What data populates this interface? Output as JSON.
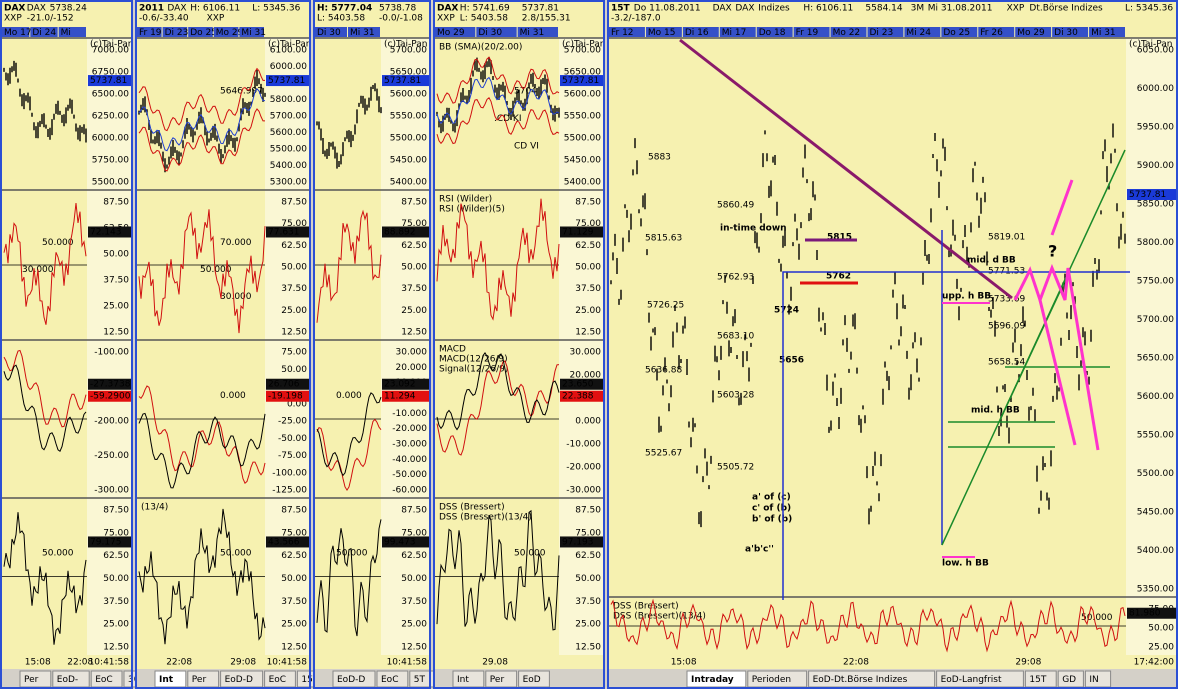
{
  "panels": [
    {
      "header": [
        "DAX",
        "DAX",
        "5738.24",
        "XXP",
        "-21.0/-152"
      ],
      "dates": [
        "Mo 17",
        "Di 24",
        "Mi"
      ],
      "subs": [
        {
          "ticks": [
            "7000.00",
            "6750.00",
            "6500.00",
            "6250.00",
            "6000.00",
            "5750.00",
            "5500.00"
          ],
          "badges": [
            "5737.81"
          ],
          "notes": [
            "(c)Tai-Pan"
          ],
          "legend": []
        },
        {
          "ticks": [
            "87.50",
            "62.50",
            "50.00",
            "37.50",
            "25.00",
            "12.50"
          ],
          "badges": [
            "72.143"
          ],
          "notes": [
            "50.000",
            "30.000"
          ],
          "legend": []
        },
        {
          "ticks": [
            "-100.00",
            "-150.00",
            "-200.00",
            "-250.00",
            "-300.00"
          ],
          "badges": [
            "-27.3738",
            "-59.2900"
          ],
          "notes": [],
          "legend": []
        },
        {
          "ticks": [
            "87.50",
            "75.00",
            "62.50",
            "50.00",
            "37.50",
            "25.00",
            "12.50"
          ],
          "badges": [
            "79.175"
          ],
          "notes": [
            "50.000"
          ],
          "legend": []
        }
      ],
      "axis_dates": [
        "15:08",
        "22:08"
      ],
      "tabs": [
        "Per",
        "EoD-",
        "EoC",
        "30T"
      ],
      "time": "10:41:58"
    },
    {
      "header": [
        "2011",
        "DAX",
        "H: 6106.11",
        "L: 5345.36",
        "-0.6/-33.40",
        "XXP"
      ],
      "dates": [
        "Fr 19",
        "Di 23",
        "Do 25",
        "Mo 29",
        "Mi 31"
      ],
      "subs": [
        {
          "ticks": [
            "6100.00",
            "6000.00",
            "5900.00",
            "5800.00",
            "5700.00",
            "5600.00",
            "5500.00",
            "5400.00",
            "5300.00"
          ],
          "badges": [
            "5737.81"
          ],
          "notes": [
            "5646.997",
            "(c)Tai-Pan"
          ],
          "legend": []
        },
        {
          "ticks": [
            "87.50",
            "75.00",
            "62.50",
            "50.00",
            "37.50",
            "25.00",
            "12.50"
          ],
          "badges": [
            "77.631"
          ],
          "notes": [
            "70.000",
            "50.000",
            "30.000"
          ],
          "legend": []
        },
        {
          "ticks": [
            "75.00",
            "50.00",
            "25.00",
            "0.00",
            "-25.00",
            "-50.00",
            "-75.00",
            "-100.00",
            "-125.00"
          ],
          "badges": [
            "26.706",
            "-19.198"
          ],
          "notes": [
            "0.000"
          ],
          "legend": []
        },
        {
          "ticks": [
            "87.50",
            "75.00",
            "62.50",
            "50.00",
            "37.50",
            "25.00",
            "12.50"
          ],
          "badges": [
            "43.566"
          ],
          "notes": [
            "50.000"
          ],
          "legend": [
            "(13/4)"
          ]
        }
      ],
      "axis_dates": [
        "22:08",
        "29:08"
      ],
      "tabs": [
        "Int",
        "Per",
        "EoD-D",
        "EoC",
        "15T"
      ],
      "time": "10:41:58"
    },
    {
      "header": [
        "H: 5777.04",
        "5738.78",
        "L: 5403.58",
        "-0.0/-1.08"
      ],
      "dates": [
        "Di 30",
        "Mi 31"
      ],
      "subs": [
        {
          "ticks": [
            "5700.00",
            "5650.00",
            "5600.00",
            "5550.00",
            "5500.00",
            "5450.00",
            "5400.00"
          ],
          "badges": [
            "5737.81"
          ],
          "notes": [
            "(c)Tai-Pan"
          ],
          "legend": []
        },
        {
          "ticks": [
            "87.50",
            "75.00",
            "62.50",
            "50.00",
            "37.50",
            "25.00",
            "12.50"
          ],
          "badges": [
            "88.892"
          ],
          "notes": [],
          "legend": []
        },
        {
          "ticks": [
            "30.000",
            "20.000",
            "10.000",
            "0.000",
            "-10.000",
            "-20.000",
            "-30.000",
            "-40.000",
            "-50.000",
            "-60.000"
          ],
          "badges": [
            "23.092",
            "11.294"
          ],
          "notes": [
            "0.000"
          ],
          "legend": []
        },
        {
          "ticks": [
            "87.50",
            "75.00",
            "62.50",
            "50.00",
            "37.50",
            "25.00",
            "12.50"
          ],
          "badges": [
            "99.473"
          ],
          "notes": [
            "50.000"
          ],
          "legend": []
        }
      ],
      "axis_dates": [],
      "tabs": [
        "EoD-D",
        "EoC",
        "5T"
      ],
      "time": "10:41:58"
    },
    {
      "header": [
        "DAX",
        "H: 5741.69",
        "5737.81",
        "XXP",
        "L: 5403.58",
        "2.8/155.31"
      ],
      "dates": [
        "Mo 29",
        "Di 30",
        "Mi 31"
      ],
      "subs": [
        {
          "ticks": [
            "5700.00",
            "5650.00",
            "5600.00",
            "5550.00",
            "5500.00",
            "5450.00",
            "5400.00"
          ],
          "badges": [
            "5737.81"
          ],
          "notes": [
            "5704",
            ".CD KI",
            "CD VI",
            "(c)Tai-Pan"
          ],
          "legend": [
            "BB (SMA)(20/2.00)"
          ]
        },
        {
          "ticks": [
            "87.50",
            "75.00",
            "62.50",
            "50.00",
            "37.50",
            "25.00",
            "12.50"
          ],
          "badges": [
            "71.129"
          ],
          "notes": [],
          "legend": [
            "RSI (Wilder)",
            "RSI (Wilder)(5)"
          ]
        },
        {
          "ticks": [
            "30.000",
            "20.000",
            "10.000",
            "0.000",
            "-10.000",
            "-20.000",
            "-30.000"
          ],
          "badges": [
            "23.650",
            "22.388"
          ],
          "notes": [],
          "legend": [
            "MACD",
            "MACD(12/26/9)",
            "Signal(12/26/9)"
          ]
        },
        {
          "ticks": [
            "87.50",
            "75.00",
            "62.50",
            "50.00",
            "37.50",
            "25.00",
            "12.50"
          ],
          "badges": [
            "97.193"
          ],
          "notes": [
            "50.000"
          ],
          "legend": [
            "DSS (Bressert)",
            "DSS (Bressert)(13/4)"
          ]
        }
      ],
      "axis_dates": [
        "29.08"
      ],
      "tabs": [
        "Int",
        "Per",
        "EoD"
      ],
      "time": ""
    },
    {
      "header": [
        "15T",
        "Do 11.08.2011",
        "DAX",
        "DAX",
        "Indizes",
        "H: 6106.11",
        "5584.14",
        "3M",
        "Mi 31.08.2011",
        "XXP",
        "Dt.Börse Indizes",
        "L: 5345.36",
        "-3.2/-187.0"
      ],
      "dates": [
        "Fr 12",
        "Mo 15",
        "Di 16",
        "Mi 17",
        "Do 18",
        "Fr 19",
        "Mo 22",
        "Di 23",
        "Mi 24",
        "Do 25",
        "Fr 26",
        "Mo 29",
        "Di 30",
        "Mi 31"
      ],
      "subs": [
        {
          "ticks": [
            "6050.00",
            "6000.00",
            "5950.00",
            "5900.00",
            "5850.00",
            "5800.00",
            "5750.00",
            "5700.00",
            "5650.00",
            "5600.00",
            "5550.00",
            "5500.00",
            "5450.00",
            "5400.00",
            "5350.00"
          ],
          "badges": [
            "5737.81"
          ],
          "notes": [
            "(c)Tai-Pan"
          ],
          "legend": []
        },
        {
          "ticks": [
            "75.00",
            "50.00",
            "25.00"
          ],
          "badges": [
            "81.980"
          ],
          "notes": [
            "50.000"
          ],
          "legend": [
            "DSS (Bressert)",
            "DSS (Bressert)(13/4)"
          ]
        }
      ],
      "annotations": [
        "5883",
        "5860.49",
        "in-time down",
        "5815.63",
        "5815",
        "5762",
        "5762.93",
        "5726.25",
        "5724",
        "5683.10",
        "5656",
        "5636.88",
        "5603.28",
        "5525.67",
        "5505.72",
        "a' of (c)",
        "c' of (b)",
        "b' of (b)",
        "a'b'c''",
        "5819.01",
        "mid. d BB",
        "?",
        "5771.53",
        "upp. h BB",
        "5733.69",
        "5696.09",
        "5658.54",
        "mid. h BB",
        "low. h BB"
      ],
      "axis_dates": [
        "15:08",
        "22:08",
        "29:08"
      ],
      "tabs": [
        "Intraday",
        "Perioden",
        "EoD-Dt.Börse Indizes",
        "EoD-Langfrist",
        "15T",
        "GD",
        "IN"
      ],
      "time": "17:42:00"
    }
  ]
}
